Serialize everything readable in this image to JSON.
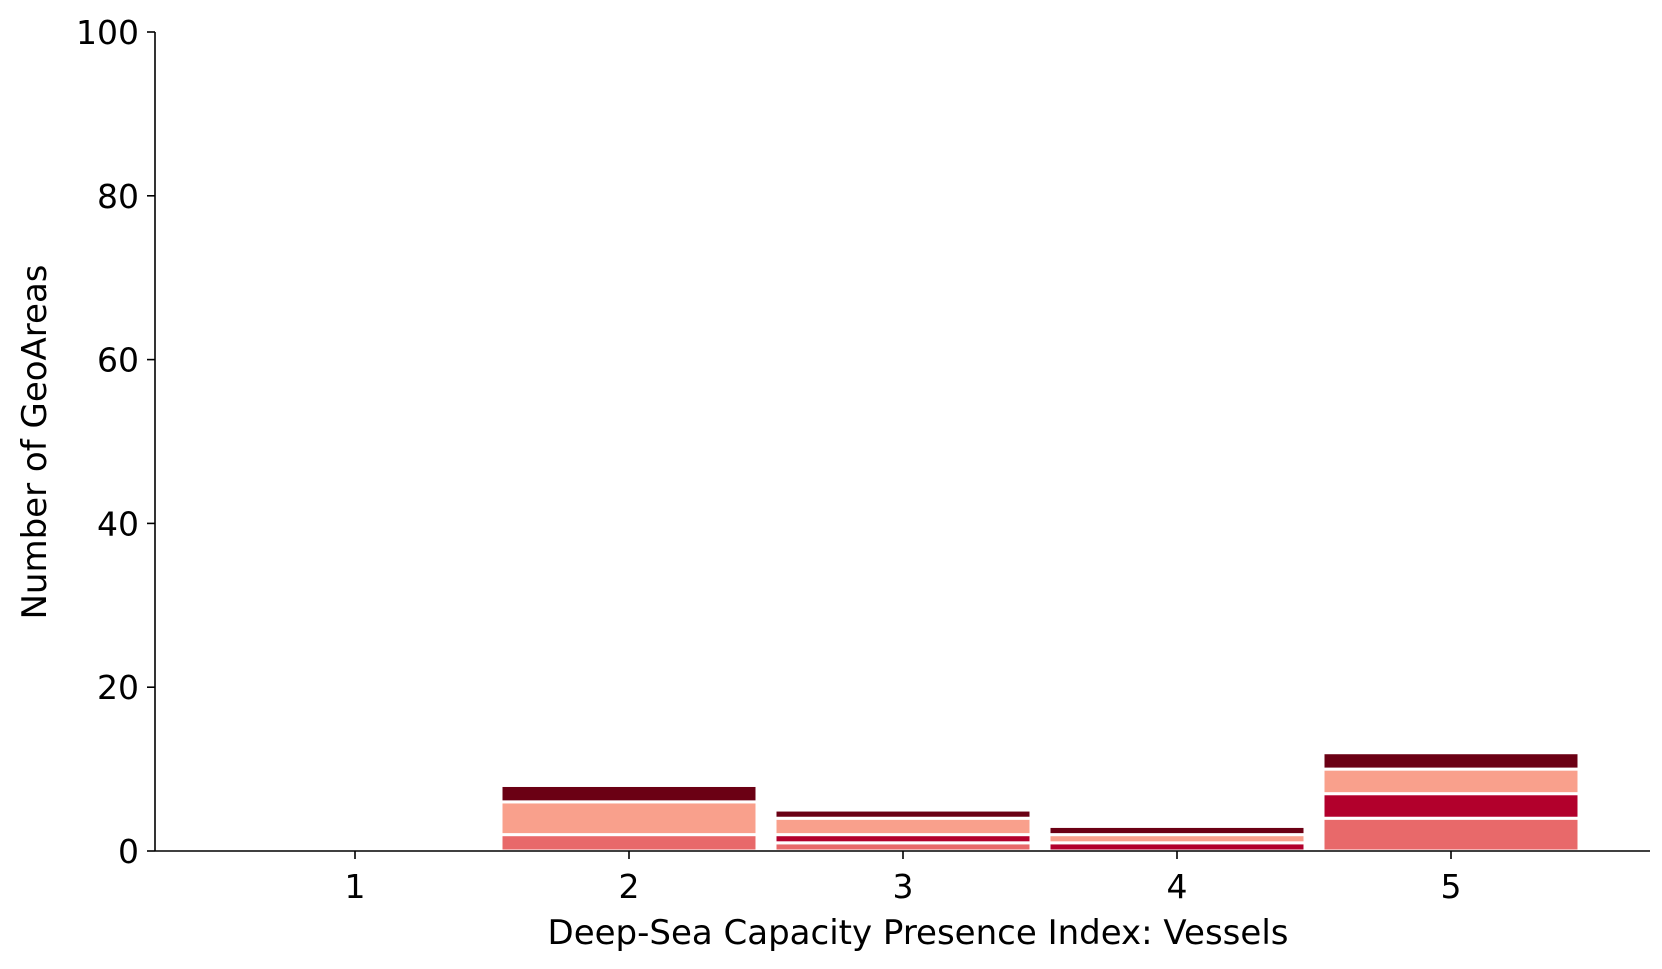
{
  "chart_data": {
    "type": "bar",
    "stacked": true,
    "title": "",
    "xlabel": "Deep-Sea Capacity Presence Index: Vessels",
    "ylabel": "Number of GeoAreas",
    "categories": [
      "1",
      "2",
      "3",
      "4",
      "5"
    ],
    "ylim": [
      0,
      100
    ],
    "yticks": [
      "0",
      "20",
      "40",
      "60",
      "80",
      "100"
    ],
    "grid": false,
    "legend": "none",
    "series": [
      {
        "color": "#e8696a",
        "values": [
          0,
          2,
          1,
          0,
          4
        ]
      },
      {
        "color": "#b2002c",
        "values": [
          0,
          0,
          1,
          1,
          3
        ]
      },
      {
        "color": "#f9a08c",
        "values": [
          0,
          4,
          2,
          1,
          3
        ]
      },
      {
        "color": "#fcd6c8",
        "values": [
          0,
          0,
          0,
          0,
          0
        ]
      },
      {
        "color": "#6b0014",
        "values": [
          0,
          2,
          1,
          1,
          2
        ]
      }
    ]
  }
}
